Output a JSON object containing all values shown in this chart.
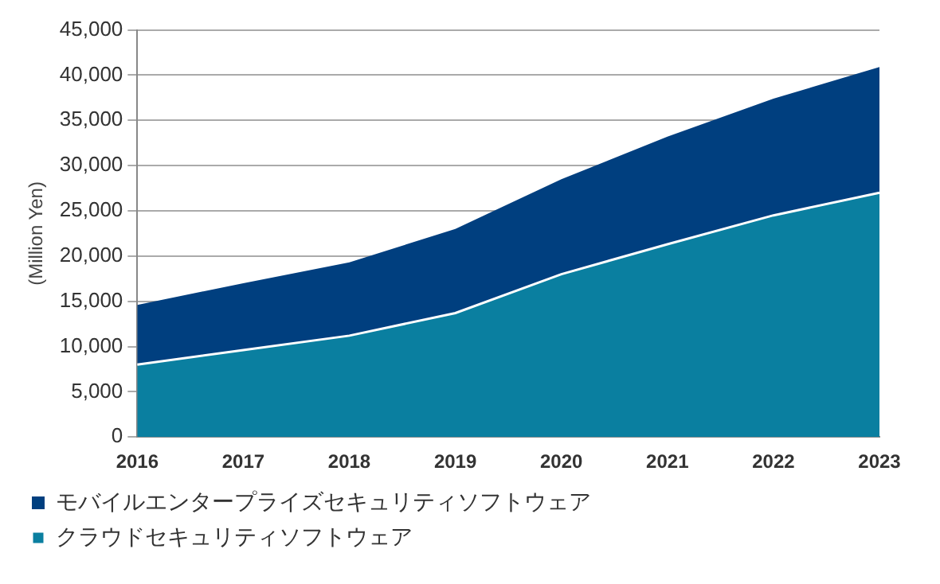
{
  "chart_data": {
    "type": "area",
    "stacked": true,
    "ylabel": "(Million Yen)",
    "categories": [
      "2016",
      "2017",
      "2018",
      "2019",
      "2020",
      "2021",
      "2022",
      "2023"
    ],
    "series": [
      {
        "name": "クラウドセキュリティソフトウェア",
        "color": "#0a7fa0",
        "values": [
          8000,
          9600,
          11200,
          13700,
          18000,
          21300,
          24500,
          27000
        ]
      },
      {
        "name": "モバイルエンタープライズセキュリティソフトウェア",
        "color": "#003f7f",
        "values": [
          6600,
          7400,
          8100,
          9300,
          10500,
          11900,
          12900,
          13900
        ]
      }
    ],
    "ylim": [
      0,
      45000
    ],
    "yticks": [
      0,
      {
        "value": 5000,
        "label": "5,000"
      },
      {
        "value": 10000,
        "label": "10,000"
      },
      {
        "value": 15000,
        "label": "15,000"
      },
      {
        "value": 20000,
        "label": "20,000"
      },
      {
        "value": 25000,
        "label": "25,000"
      },
      {
        "value": 30000,
        "label": "30,000"
      },
      {
        "value": 35000,
        "label": "35,000"
      },
      {
        "value": 40000,
        "label": "40,000"
      },
      {
        "value": 45000,
        "label": "45,000"
      }
    ],
    "grid": "y",
    "legend": "bottom"
  }
}
